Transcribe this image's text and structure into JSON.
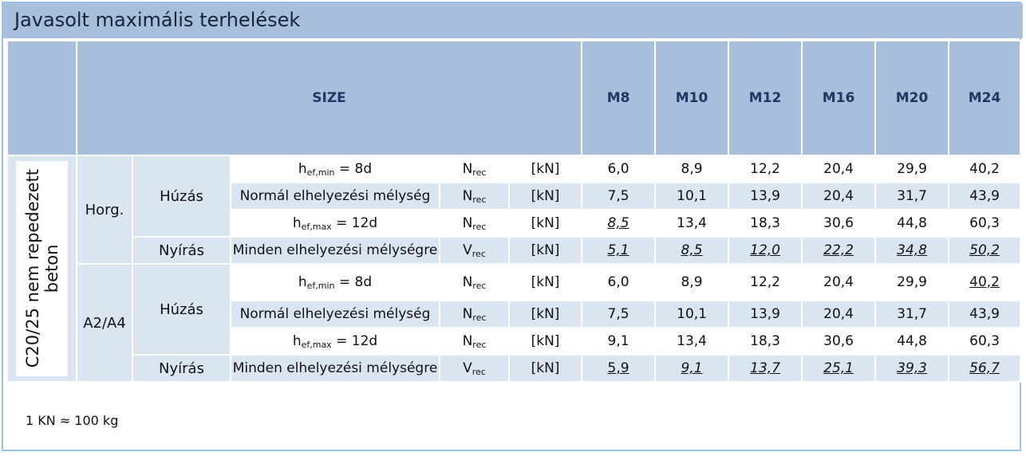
{
  "title": "Javasolt maximális terhelések",
  "table": {
    "header": {
      "size": "SIZE",
      "columns": [
        "M8",
        "M10",
        "M12",
        "M16",
        "M20",
        "M24"
      ]
    },
    "concrete": [
      "C20/25 nem repedezett",
      "beton"
    ],
    "groups": [
      {
        "name": "Horg.",
        "loads": [
          {
            "name": "Húzás",
            "rows": [
              {
                "depth": {
                  "main": "h",
                  "sub": "ef,min",
                  "rest": " = 8d"
                },
                "symbol": {
                  "main": "N",
                  "sub": "rec"
                },
                "unit": "[kN]",
                "values": [
                  "6,0",
                  "8,9",
                  "12,2",
                  "20,4",
                  "29,9",
                  "40,2"
                ]
              },
              {
                "depth": "Normál elhelyezési mélység",
                "symbol": {
                  "main": "N",
                  "sub": "rec"
                },
                "unit": "[kN]",
                "values": [
                  "7,5",
                  "10,1",
                  "13,9",
                  "20,4",
                  "31,7",
                  "43,9"
                ]
              },
              {
                "depth": {
                  "main": "h",
                  "sub": "ef,max",
                  "rest": " = 12d"
                },
                "symbol": {
                  "main": "N",
                  "sub": "rec"
                },
                "unit": "[kN]",
                "values": [
                  "8,5",
                  "13,4",
                  "18,3",
                  "30,6",
                  "44,8",
                  "60,3"
                ]
              }
            ]
          },
          {
            "name": "Nyírás",
            "rows": [
              {
                "depth": "Minden elhelyezési mélységre",
                "symbol": {
                  "main": "V",
                  "sub": "rec"
                },
                "unit": "[kN]",
                "values": [
                  "5,1",
                  "8,5",
                  "12,0",
                  "22,2",
                  "34,8",
                  "50,2"
                ]
              }
            ]
          }
        ]
      },
      {
        "name": "A2/A4",
        "loads": [
          {
            "name": "Húzás",
            "rows": [
              {
                "depth": {
                  "main": "h",
                  "sub": "ef,min",
                  "rest": " = 8d"
                },
                "symbol": {
                  "main": "N",
                  "sub": "rec"
                },
                "unit": "[kN]",
                "values": [
                  "6,0",
                  "8,9",
                  "12,2",
                  "20,4",
                  "29,9",
                  "40,2"
                ]
              },
              {
                "depth": "Normál elhelyezési mélység",
                "symbol": {
                  "main": "N",
                  "sub": "rec"
                },
                "unit": "[kN]",
                "values": [
                  "7,5",
                  "10,1",
                  "13,9",
                  "20,4",
                  "31,7",
                  "43,9"
                ]
              },
              {
                "depth": {
                  "main": "h",
                  "sub": "ef,max",
                  "rest": " = 12d"
                },
                "symbol": {
                  "main": "N",
                  "sub": "rec"
                },
                "unit": "[kN]",
                "values": [
                  "9,1",
                  "13,4",
                  "18,3",
                  "30,6",
                  "44,8",
                  "60,3"
                ]
              }
            ]
          },
          {
            "name": "Nyírás",
            "rows": [
              {
                "depth": "Minden elhelyezési mélységre",
                "symbol": {
                  "main": "V",
                  "sub": "rec"
                },
                "unit": "[kN]",
                "values": [
                  "5,9",
                  "9,1",
                  "13,7",
                  "25,1",
                  "39,3",
                  "56,7"
                ]
              }
            ]
          }
        ]
      }
    ]
  },
  "note": "1 KN ≈ 100 kg"
}
